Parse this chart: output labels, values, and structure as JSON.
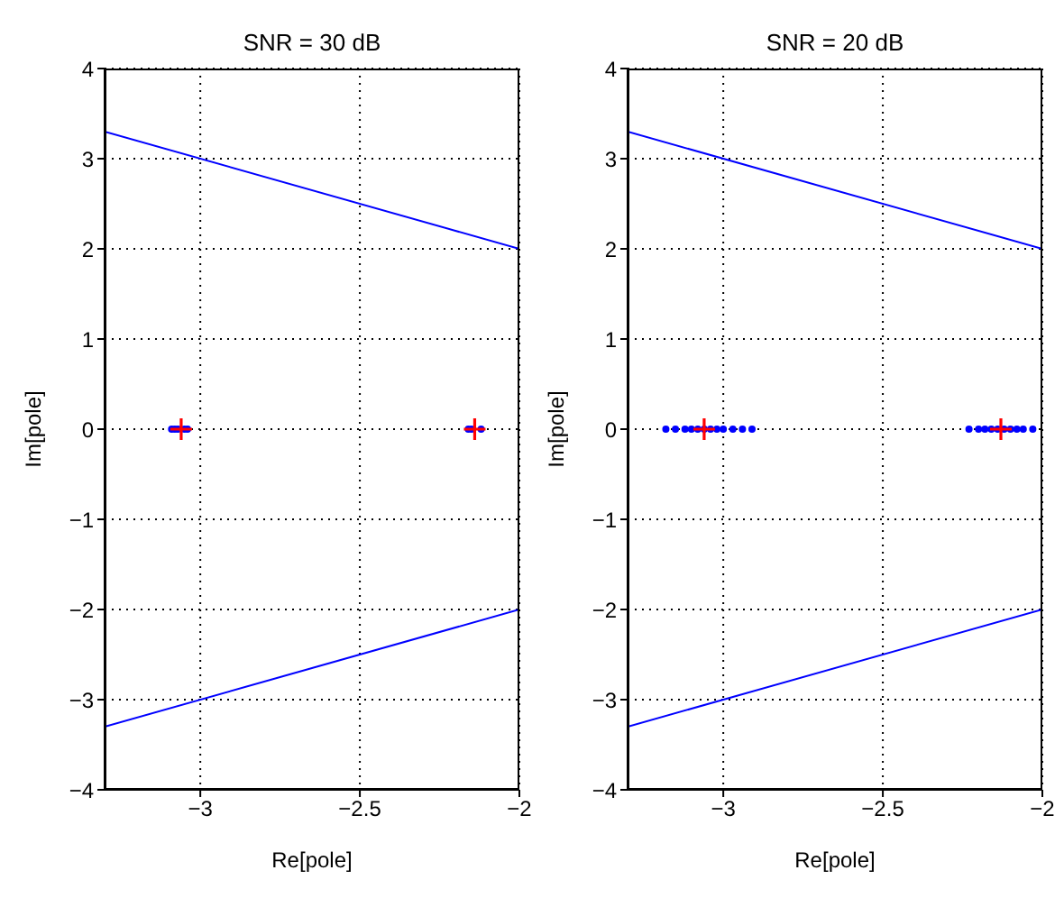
{
  "chart_data": [
    {
      "type": "line",
      "title": "SNR = 30 dB",
      "xlabel": "Re[pole]",
      "ylabel": "Im[pole]",
      "xlim": [
        -3.3,
        -2
      ],
      "xticks": [
        -3,
        -2.5,
        -2
      ],
      "ylim": [
        -4,
        4
      ],
      "yticks": [
        -4,
        -3,
        -2,
        -1,
        0,
        1,
        2,
        3,
        4
      ],
      "grid": true,
      "series": [
        {
          "color": "#0000ff",
          "x": [
            -3.3,
            -2
          ],
          "values": [
            3.3,
            2
          ],
          "marker": "none",
          "line_style": "solid"
        },
        {
          "color": "#0000ff",
          "x": [
            -3.3,
            -2
          ],
          "values": [
            -3.3,
            -2
          ],
          "marker": "none",
          "line_style": "solid"
        },
        {
          "type": "scatter",
          "color": "#0000ff",
          "marker": "circle",
          "x": [
            -3.09,
            -3.08,
            -3.07,
            -3.05,
            -3.04,
            -2.16,
            -2.15,
            -2.12
          ],
          "values": [
            0,
            0,
            0,
            0,
            0,
            0,
            0,
            0
          ]
        },
        {
          "type": "scatter",
          "color": "#ff0000",
          "marker": "cross",
          "x": [
            -3.06,
            -2.14
          ],
          "values": [
            0,
            0
          ]
        }
      ]
    },
    {
      "type": "line",
      "title": "SNR = 20 dB",
      "xlabel": "Re[pole]",
      "ylabel": "Im[pole]",
      "xlim": [
        -3.3,
        -2
      ],
      "xticks": [
        -3,
        -2.5,
        -2
      ],
      "ylim": [
        -4,
        4
      ],
      "yticks": [
        -4,
        -3,
        -2,
        -1,
        0,
        1,
        2,
        3,
        4
      ],
      "grid": true,
      "series": [
        {
          "color": "#0000ff",
          "x": [
            -3.3,
            -2
          ],
          "values": [
            3.3,
            2
          ],
          "marker": "none",
          "line_style": "solid"
        },
        {
          "color": "#0000ff",
          "x": [
            -3.3,
            -2
          ],
          "values": [
            -3.3,
            -2
          ],
          "marker": "none",
          "line_style": "solid"
        },
        {
          "type": "scatter",
          "color": "#0000ff",
          "marker": "circle",
          "x": [
            -3.18,
            -3.15,
            -3.12,
            -3.1,
            -3.08,
            -3.06,
            -3.04,
            -3.02,
            -3.0,
            -2.97,
            -2.94,
            -2.91,
            -2.23,
            -2.2,
            -2.18,
            -2.16,
            -2.14,
            -2.12,
            -2.1,
            -2.08,
            -2.06,
            -2.03
          ],
          "values": [
            0,
            0,
            0,
            0,
            0,
            0,
            0,
            0,
            0,
            0,
            0,
            0,
            0,
            0,
            0,
            0,
            0,
            0,
            0,
            0,
            0,
            0
          ]
        },
        {
          "type": "scatter",
          "color": "#ff0000",
          "marker": "cross",
          "x": [
            -3.06,
            -2.13
          ],
          "values": [
            0,
            0
          ]
        }
      ]
    }
  ]
}
